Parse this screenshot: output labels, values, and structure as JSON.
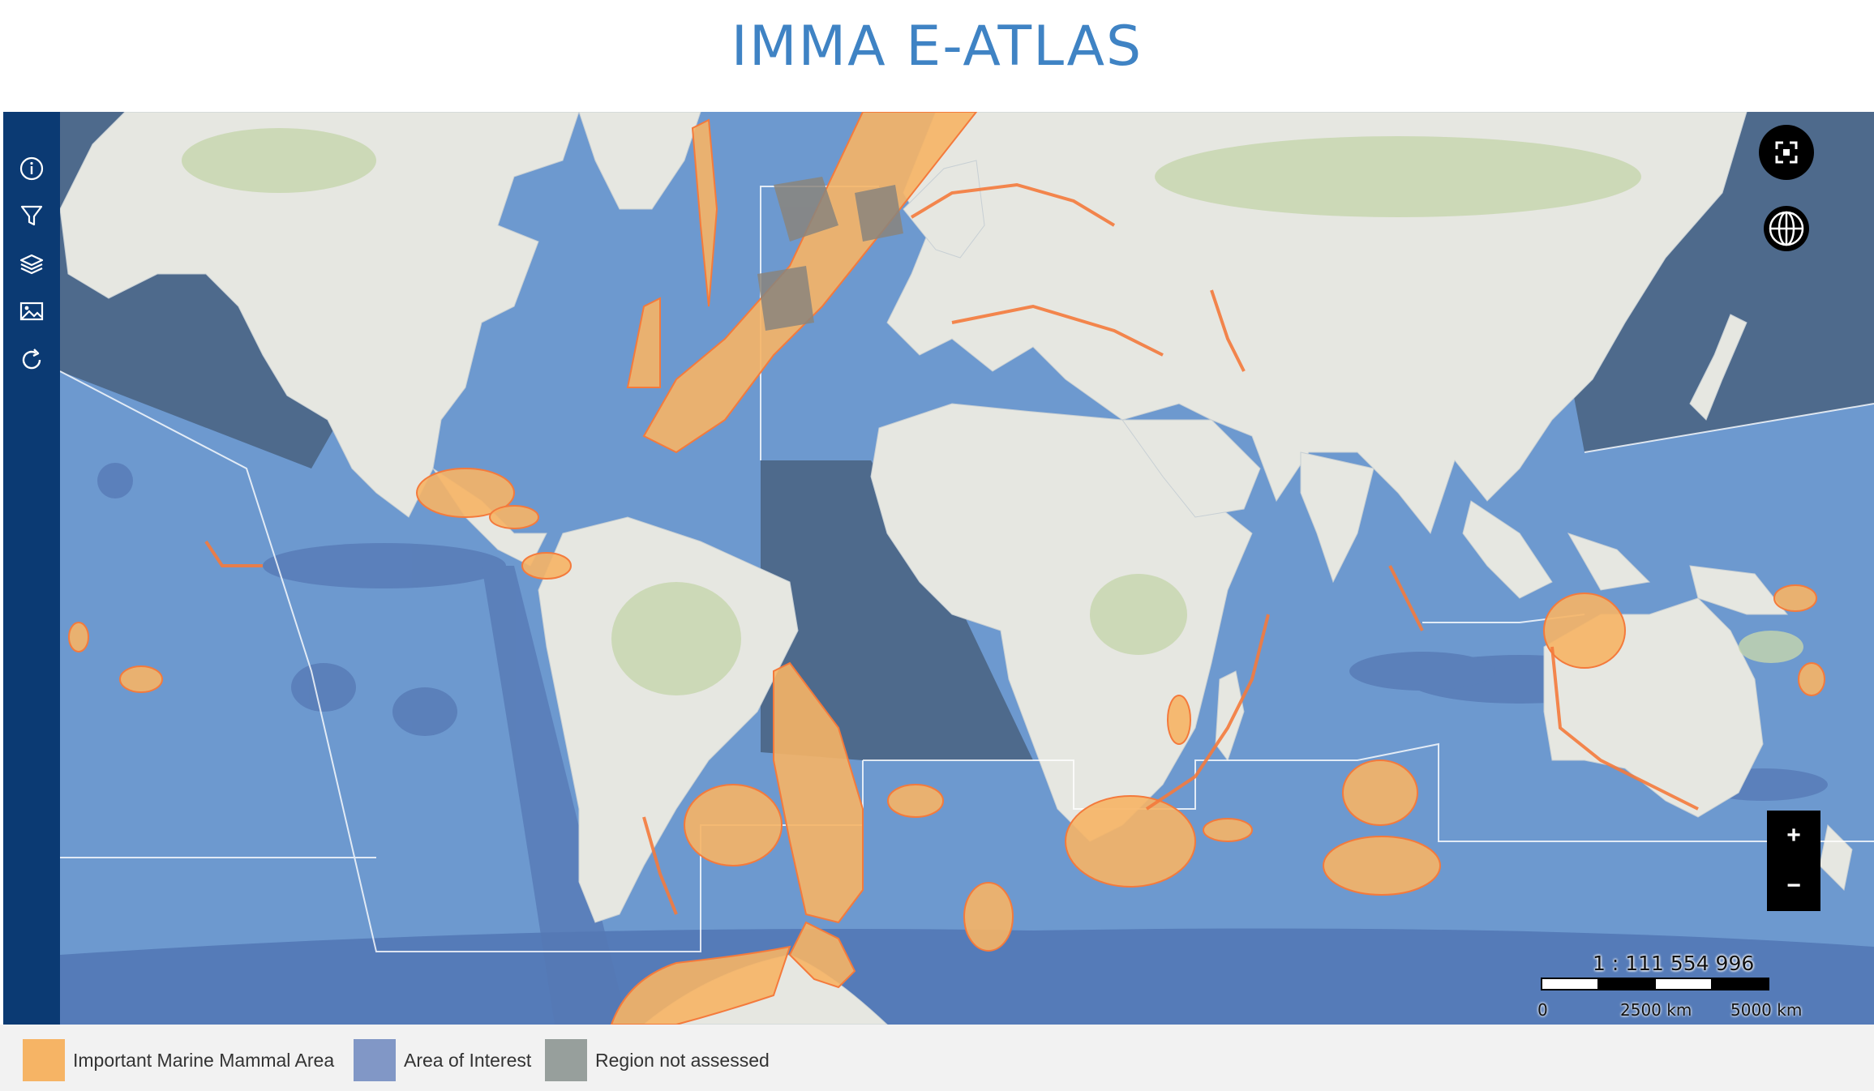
{
  "title": "IMMA E-ATLAS",
  "sidebar": {
    "items": [
      {
        "icon": "info-icon"
      },
      {
        "icon": "filter-icon"
      },
      {
        "icon": "layers-icon"
      },
      {
        "icon": "image-icon"
      },
      {
        "icon": "refresh-icon"
      }
    ]
  },
  "map_controls": {
    "fullscreen_icon": "fullscreen-icon",
    "basemap_icon": "globe-icon",
    "zoom_in_label": "+",
    "zoom_out_label": "−"
  },
  "scale": {
    "ratio": "1 : 111 554 996",
    "ticks": [
      "0",
      "2500 km",
      "5000 km"
    ]
  },
  "legend": {
    "items": [
      {
        "label": "Important Marine Mammal Area",
        "color": "#f6b465"
      },
      {
        "label": "Area of Interest",
        "color": "#8197c6"
      },
      {
        "label": "Region not assessed",
        "color": "#979f9c"
      }
    ]
  },
  "colors": {
    "ocean": "#6d99cf",
    "land": "#e5e7e2",
    "imma": "#f6b465",
    "imma_border": "#f47a3c",
    "aoi": "#5578b4",
    "not_assessed": "#4e6a8c",
    "sidebar": "#0b3a73"
  }
}
